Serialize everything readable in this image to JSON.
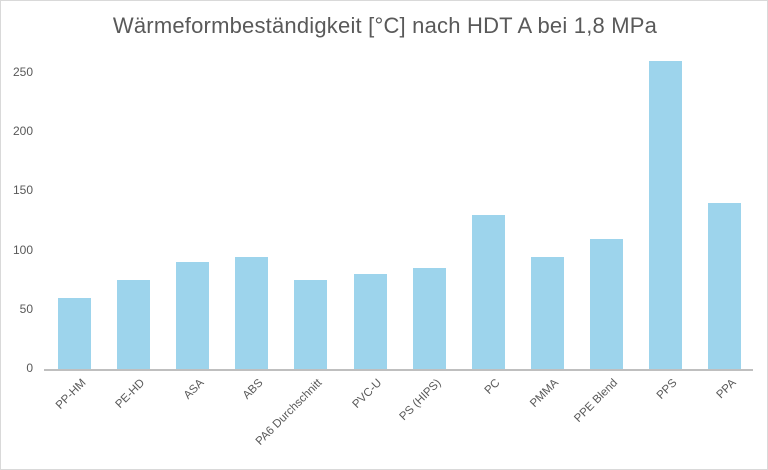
{
  "chart_data": {
    "type": "bar",
    "title": "Wärmeformbeständigkeit [°C] nach HDT A bei 1,8 MPa",
    "xlabel": "",
    "ylabel": "",
    "categories": [
      "PP-HM",
      "PE-HD",
      "ASA",
      "ABS",
      "PA6 Durchschnitt",
      "PVC-U",
      "PS (HIPS)",
      "PC",
      "PMMA",
      "PPE Blend",
      "PPS",
      "PPA"
    ],
    "values": [
      60,
      75,
      90,
      95,
      75,
      80,
      85,
      130,
      95,
      110,
      260,
      140
    ],
    "ylim": [
      0,
      260
    ],
    "yticks": [
      "0",
      "50",
      "100",
      "150",
      "200",
      "250"
    ],
    "grid": false,
    "legend": null,
    "bar_color": "#9dd4ec"
  }
}
